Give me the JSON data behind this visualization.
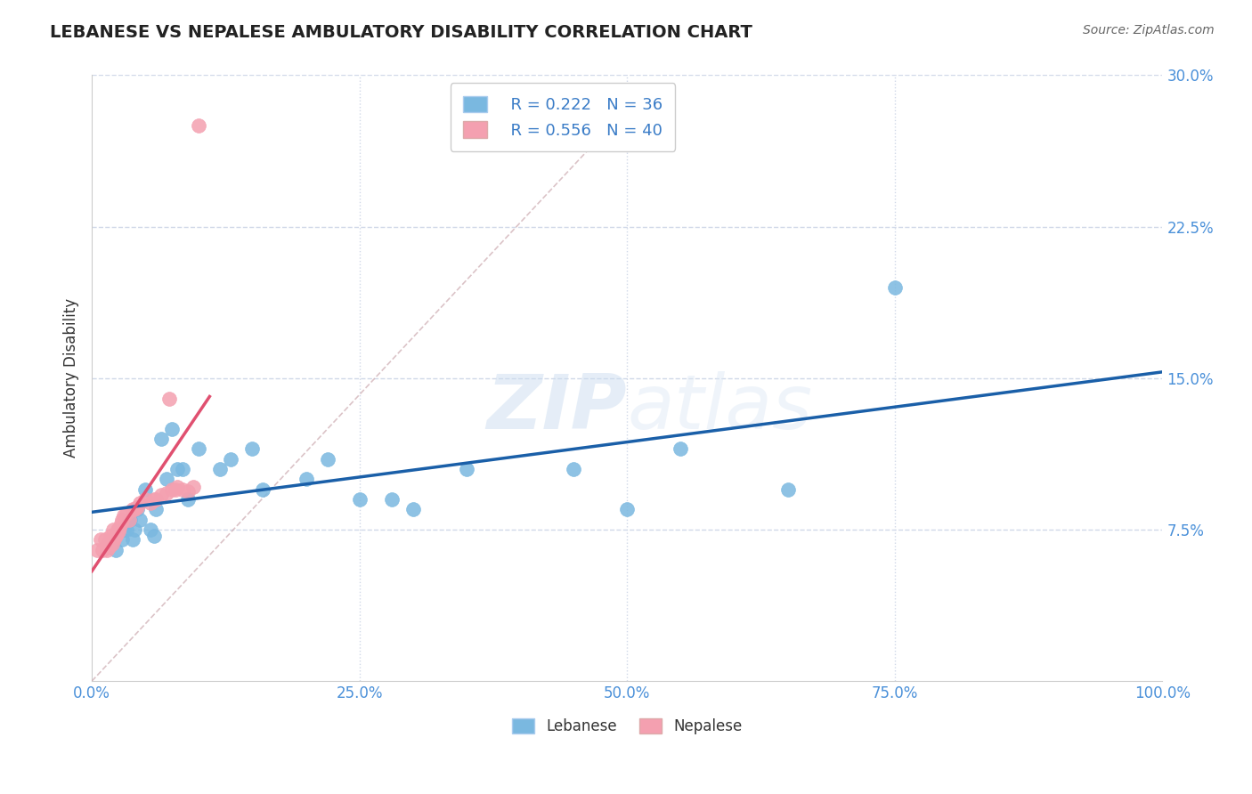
{
  "title": "LEBANESE VS NEPALESE AMBULATORY DISABILITY CORRELATION CHART",
  "source": "Source: ZipAtlas.com",
  "ylabel": "Ambulatory Disability",
  "xlim": [
    0.0,
    1.0
  ],
  "ylim": [
    0.0,
    0.3
  ],
  "xticks": [
    0.0,
    0.25,
    0.5,
    0.75,
    1.0
  ],
  "xtick_labels": [
    "0.0%",
    "25.0%",
    "50.0%",
    "75.0%",
    "100.0%"
  ],
  "yticks": [
    0.0,
    0.075,
    0.15,
    0.225,
    0.3
  ],
  "ytick_labels": [
    "",
    "7.5%",
    "15.0%",
    "22.5%",
    "30.0%"
  ],
  "legend_r_lebanese": "R = 0.222",
  "legend_n_lebanese": "N = 36",
  "legend_r_nepalese": "R = 0.556",
  "legend_n_nepalese": "N = 40",
  "lebanese_color": "#7ab8e0",
  "nepalese_color": "#f4a0b0",
  "lebanese_line_color": "#1a5fa8",
  "nepalese_line_color": "#e05070",
  "legend_text_color": "#3a7cc7",
  "axis_color": "#4a90d9",
  "grid_color": "#d0d8e8",
  "background_color": "#ffffff",
  "watermark_zip": "ZIP",
  "watermark_atlas": "atlas",
  "lebanese_x": [
    0.022,
    0.028,
    0.03,
    0.032,
    0.035,
    0.036,
    0.038,
    0.04,
    0.042,
    0.045,
    0.05,
    0.055,
    0.058,
    0.06,
    0.065,
    0.07,
    0.075,
    0.08,
    0.085,
    0.09,
    0.1,
    0.12,
    0.13,
    0.15,
    0.16,
    0.2,
    0.22,
    0.25,
    0.28,
    0.3,
    0.35,
    0.45,
    0.5,
    0.55,
    0.65,
    0.75
  ],
  "lebanese_y": [
    0.065,
    0.07,
    0.075,
    0.075,
    0.08,
    0.08,
    0.07,
    0.075,
    0.085,
    0.08,
    0.095,
    0.075,
    0.072,
    0.085,
    0.12,
    0.1,
    0.125,
    0.105,
    0.105,
    0.09,
    0.115,
    0.105,
    0.11,
    0.115,
    0.095,
    0.1,
    0.11,
    0.09,
    0.09,
    0.085,
    0.105,
    0.105,
    0.085,
    0.115,
    0.095,
    0.195
  ],
  "nepalese_x": [
    0.005,
    0.008,
    0.01,
    0.012,
    0.014,
    0.015,
    0.016,
    0.017,
    0.018,
    0.019,
    0.02,
    0.021,
    0.022,
    0.023,
    0.024,
    0.025,
    0.026,
    0.027,
    0.028,
    0.03,
    0.032,
    0.035,
    0.038,
    0.04,
    0.042,
    0.045,
    0.05,
    0.055,
    0.058,
    0.06,
    0.065,
    0.07,
    0.072,
    0.075,
    0.078,
    0.08,
    0.085,
    0.09,
    0.095,
    0.1
  ],
  "nepalese_y": [
    0.065,
    0.07,
    0.065,
    0.07,
    0.065,
    0.068,
    0.066,
    0.072,
    0.07,
    0.068,
    0.075,
    0.07,
    0.072,
    0.073,
    0.075,
    0.074,
    0.076,
    0.078,
    0.08,
    0.082,
    0.083,
    0.08,
    0.085,
    0.085,
    0.086,
    0.088,
    0.09,
    0.088,
    0.09,
    0.09,
    0.092,
    0.093,
    0.14,
    0.095,
    0.095,
    0.096,
    0.095,
    0.094,
    0.096,
    0.275
  ]
}
